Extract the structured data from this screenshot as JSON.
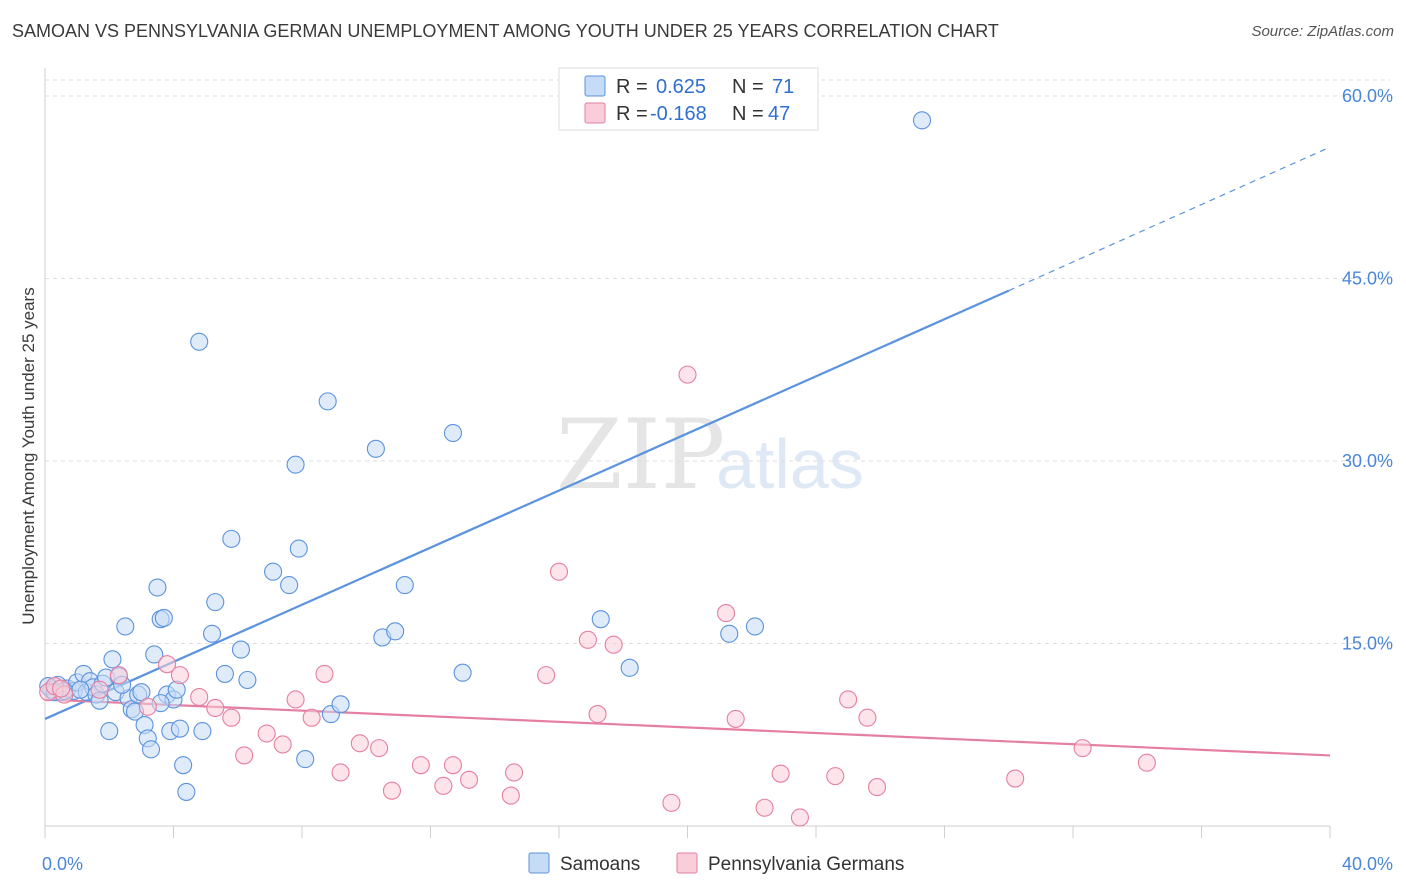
{
  "title": "SAMOAN VS PENNSYLVANIA GERMAN UNEMPLOYMENT AMONG YOUTH UNDER 25 YEARS CORRELATION CHART",
  "source": "Source: ZipAtlas.com",
  "watermark": {
    "zip": "ZIP",
    "atlas": "atlas"
  },
  "stats": {
    "r_label": "R =",
    "n_label": "N =",
    "rows": [
      {
        "r": "0.625",
        "n": "71",
        "color": "#5b93de",
        "fill": "#c6dbf6"
      },
      {
        "r": "-0.168",
        "n": "47",
        "color": "#e57fa1",
        "fill": "#f9cdd9"
      }
    ]
  },
  "legend": [
    {
      "label": "Samoans",
      "color": "#5b93de",
      "fill": "#c6dbf6"
    },
    {
      "label": "Pennsylvania Germans",
      "color": "#e57fa1",
      "fill": "#f9cdd9"
    }
  ],
  "chart_data": {
    "type": "scatter",
    "ylabel": "Unemployment Among Youth under 25 years",
    "xlim": [
      0,
      40
    ],
    "ylim": [
      0,
      60
    ],
    "x_tick_labels": [
      "0.0%",
      "40.0%"
    ],
    "y_ticks": [
      {
        "value": 15,
        "label": "15.0%"
      },
      {
        "value": 30,
        "label": "30.0%"
      },
      {
        "value": 45,
        "label": "45.0%"
      },
      {
        "value": 60,
        "label": "60.0%"
      }
    ],
    "grid": true,
    "series": [
      {
        "name": "Samoans",
        "color": "#5b93de",
        "fill": "#c6dbf6",
        "trend": {
          "x0": 0,
          "y0": 8.8,
          "x1": 30.0,
          "y1": 44.0,
          "dash_to_x": 40.0,
          "dash_to_y": 55.8
        },
        "points": [
          [
            0.2,
            11.2
          ],
          [
            0.4,
            11.6
          ],
          [
            0.5,
            11.0
          ],
          [
            0.7,
            11.3
          ],
          [
            0.9,
            11.1
          ],
          [
            1.0,
            11.8
          ],
          [
            1.2,
            12.5
          ],
          [
            1.3,
            11.0
          ],
          [
            1.4,
            11.9
          ],
          [
            1.5,
            11.4
          ],
          [
            1.6,
            10.8
          ],
          [
            1.7,
            10.3
          ],
          [
            1.8,
            11.7
          ],
          [
            1.9,
            12.2
          ],
          [
            2.0,
            7.8
          ],
          [
            2.1,
            13.7
          ],
          [
            2.2,
            11.0
          ],
          [
            2.3,
            12.3
          ],
          [
            2.5,
            16.4
          ],
          [
            2.6,
            10.5
          ],
          [
            2.7,
            9.6
          ],
          [
            2.8,
            9.4
          ],
          [
            2.9,
            10.8
          ],
          [
            3.0,
            11.0
          ],
          [
            3.1,
            8.3
          ],
          [
            3.2,
            7.2
          ],
          [
            3.3,
            6.3
          ],
          [
            3.4,
            14.1
          ],
          [
            3.5,
            19.6
          ],
          [
            3.6,
            17.0
          ],
          [
            3.7,
            17.1
          ],
          [
            3.8,
            10.8
          ],
          [
            3.9,
            7.8
          ],
          [
            4.0,
            10.4
          ],
          [
            4.1,
            11.2
          ],
          [
            4.2,
            8.0
          ],
          [
            4.3,
            5.0
          ],
          [
            4.4,
            2.8
          ],
          [
            4.8,
            39.8
          ],
          [
            4.9,
            7.8
          ],
          [
            5.2,
            15.8
          ],
          [
            5.3,
            18.4
          ],
          [
            5.6,
            12.5
          ],
          [
            5.8,
            23.6
          ],
          [
            6.1,
            14.5
          ],
          [
            6.3,
            12.0
          ],
          [
            7.1,
            20.9
          ],
          [
            7.6,
            19.8
          ],
          [
            7.8,
            29.7
          ],
          [
            7.9,
            22.8
          ],
          [
            8.1,
            5.5
          ],
          [
            8.8,
            34.9
          ],
          [
            8.9,
            9.2
          ],
          [
            9.2,
            10.0
          ],
          [
            10.3,
            31.0
          ],
          [
            10.5,
            15.5
          ],
          [
            10.9,
            16.0
          ],
          [
            11.2,
            19.8
          ],
          [
            12.7,
            32.3
          ],
          [
            13.0,
            12.6
          ],
          [
            17.3,
            17.0
          ],
          [
            18.2,
            13.0
          ],
          [
            21.3,
            15.8
          ],
          [
            22.1,
            16.4
          ],
          [
            27.3,
            58.0
          ],
          [
            0.1,
            11.5
          ],
          [
            0.6,
            11.1
          ],
          [
            1.1,
            11.2
          ],
          [
            2.4,
            11.6
          ],
          [
            3.6,
            10.1
          ],
          [
            0.3,
            11.0
          ]
        ]
      },
      {
        "name": "Pennsylvania Germans",
        "color": "#e57fa1",
        "fill": "#f9cdd9",
        "trend": {
          "x0": 0,
          "y0": 10.4,
          "x1": 40.0,
          "y1": 5.8
        },
        "points": [
          [
            0.1,
            11.0
          ],
          [
            0.3,
            11.5
          ],
          [
            0.6,
            10.8
          ],
          [
            1.7,
            11.2
          ],
          [
            2.3,
            12.4
          ],
          [
            3.2,
            9.8
          ],
          [
            3.8,
            13.3
          ],
          [
            4.2,
            12.4
          ],
          [
            4.8,
            10.6
          ],
          [
            5.3,
            9.7
          ],
          [
            5.8,
            8.9
          ],
          [
            6.2,
            5.8
          ],
          [
            6.9,
            7.6
          ],
          [
            7.4,
            6.7
          ],
          [
            7.8,
            10.4
          ],
          [
            8.3,
            8.9
          ],
          [
            8.7,
            12.5
          ],
          [
            9.2,
            4.4
          ],
          [
            9.8,
            6.8
          ],
          [
            10.4,
            6.4
          ],
          [
            10.8,
            2.9
          ],
          [
            11.7,
            5.0
          ],
          [
            12.4,
            3.3
          ],
          [
            12.7,
            5.0
          ],
          [
            13.2,
            3.8
          ],
          [
            14.6,
            4.4
          ],
          [
            14.5,
            2.5
          ],
          [
            15.6,
            12.4
          ],
          [
            16.0,
            20.9
          ],
          [
            16.9,
            15.3
          ],
          [
            17.2,
            9.2
          ],
          [
            17.7,
            14.9
          ],
          [
            19.5,
            1.9
          ],
          [
            20.0,
            37.1
          ],
          [
            21.2,
            17.5
          ],
          [
            21.5,
            8.8
          ],
          [
            22.4,
            1.5
          ],
          [
            22.9,
            4.3
          ],
          [
            23.5,
            0.7
          ],
          [
            24.6,
            4.1
          ],
          [
            25.0,
            10.4
          ],
          [
            25.6,
            8.9
          ],
          [
            25.9,
            3.2
          ],
          [
            30.2,
            3.9
          ],
          [
            32.3,
            6.4
          ],
          [
            34.3,
            5.2
          ],
          [
            0.5,
            11.3
          ]
        ]
      }
    ]
  }
}
